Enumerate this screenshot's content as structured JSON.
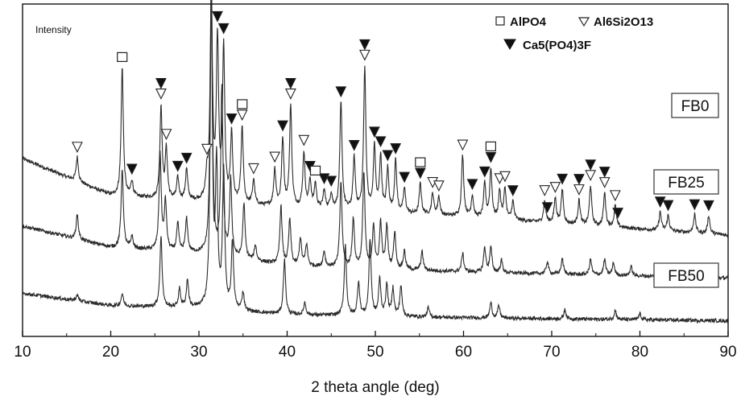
{
  "chart_data": {
    "type": "line",
    "xlabel": "2 theta angle (deg)",
    "ylabel": "Intensity",
    "xlim": [
      10,
      90
    ],
    "xticks": [
      10,
      20,
      30,
      40,
      50,
      60,
      70,
      80,
      90
    ],
    "grid": false,
    "legend_position": "top-right",
    "legend": [
      {
        "marker": "open-square",
        "label": "AlPO4"
      },
      {
        "marker": "open-triangle-down",
        "label": "Al6Si2O13"
      },
      {
        "marker": "filled-triangle-down",
        "label": "Ca5(PO4)3F"
      }
    ],
    "series": [
      {
        "name": "FB0",
        "baseline": [
          [
            10,
            0.56
          ],
          [
            20,
            0.44
          ],
          [
            30,
            0.42
          ],
          [
            40,
            0.4
          ],
          [
            60,
            0.37
          ],
          [
            90,
            0.31
          ]
        ],
        "peaks": [
          [
            16.2,
            0.08
          ],
          [
            21.3,
            0.42
          ],
          [
            22.4,
            0.05
          ],
          [
            25.7,
            0.3
          ],
          [
            26.3,
            0.16
          ],
          [
            27.6,
            0.07
          ],
          [
            28.6,
            0.1
          ],
          [
            30.9,
            0.07
          ],
          [
            31.4,
            0.7
          ],
          [
            32.1,
            0.52
          ],
          [
            32.8,
            0.5
          ],
          [
            33.7,
            0.22
          ],
          [
            34.9,
            0.25
          ],
          [
            36.2,
            0.08
          ],
          [
            38.6,
            0.12
          ],
          [
            39.5,
            0.22
          ],
          [
            40.4,
            0.33
          ],
          [
            41.9,
            0.18
          ],
          [
            42.6,
            0.09
          ],
          [
            43.2,
            0.08
          ],
          [
            44.2,
            0.06
          ],
          [
            45.0,
            0.05
          ],
          [
            46.1,
            0.35
          ],
          [
            47.6,
            0.17
          ],
          [
            48.8,
            0.47
          ],
          [
            49.9,
            0.21
          ],
          [
            50.6,
            0.18
          ],
          [
            51.4,
            0.14
          ],
          [
            52.3,
            0.17
          ],
          [
            53.3,
            0.08
          ],
          [
            55.1,
            0.1
          ],
          [
            56.5,
            0.07
          ],
          [
            57.2,
            0.06
          ],
          [
            59.9,
            0.2
          ],
          [
            61.0,
            0.07
          ],
          [
            62.4,
            0.11
          ],
          [
            63.1,
            0.16
          ],
          [
            64.1,
            0.09
          ],
          [
            64.7,
            0.1
          ],
          [
            65.6,
            0.06
          ],
          [
            69.2,
            0.07
          ],
          [
            70.4,
            0.08
          ],
          [
            71.2,
            0.11
          ],
          [
            73.1,
            0.08
          ],
          [
            74.4,
            0.13
          ],
          [
            76.0,
            0.11
          ],
          [
            77.2,
            0.07
          ],
          [
            82.3,
            0.06
          ],
          [
            83.2,
            0.05
          ],
          [
            86.2,
            0.06
          ],
          [
            87.8,
            0.06
          ]
        ]
      },
      {
        "name": "FB25",
        "baseline": [
          [
            10,
            0.34
          ],
          [
            20,
            0.27
          ],
          [
            30,
            0.25
          ],
          [
            40,
            0.21
          ],
          [
            60,
            0.19
          ],
          [
            90,
            0.17
          ]
        ],
        "peaks": [
          [
            16.2,
            0.08
          ],
          [
            21.3,
            0.26
          ],
          [
            22.4,
            0.04
          ],
          [
            25.6,
            0.31
          ],
          [
            26.2,
            0.16
          ],
          [
            27.6,
            0.09
          ],
          [
            28.6,
            0.11
          ],
          [
            31.4,
            0.88
          ],
          [
            32.6,
            0.54
          ],
          [
            33.6,
            0.25
          ],
          [
            35.1,
            0.18
          ],
          [
            36.4,
            0.05
          ],
          [
            39.3,
            0.19
          ],
          [
            40.3,
            0.15
          ],
          [
            41.5,
            0.09
          ],
          [
            42.2,
            0.07
          ],
          [
            44.2,
            0.05
          ],
          [
            46.1,
            0.28
          ],
          [
            47.5,
            0.16
          ],
          [
            48.7,
            0.31
          ],
          [
            49.8,
            0.14
          ],
          [
            50.6,
            0.15
          ],
          [
            51.3,
            0.14
          ],
          [
            52.2,
            0.12
          ],
          [
            53.3,
            0.06
          ],
          [
            55.3,
            0.06
          ],
          [
            59.9,
            0.06
          ],
          [
            62.4,
            0.08
          ],
          [
            63.1,
            0.08
          ],
          [
            64.3,
            0.04
          ],
          [
            69.5,
            0.04
          ],
          [
            71.2,
            0.05
          ],
          [
            74.4,
            0.05
          ],
          [
            76.0,
            0.05
          ],
          [
            77.0,
            0.04
          ],
          [
            79.0,
            0.03
          ]
        ]
      },
      {
        "name": "FB50",
        "baseline": [
          [
            10,
            0.12
          ],
          [
            20,
            0.08
          ],
          [
            30,
            0.07
          ],
          [
            40,
            0.05
          ],
          [
            60,
            0.04
          ],
          [
            90,
            0.03
          ]
        ],
        "peaks": [
          [
            16.2,
            0.02
          ],
          [
            21.3,
            0.04
          ],
          [
            25.7,
            0.23
          ],
          [
            27.8,
            0.06
          ],
          [
            28.7,
            0.09
          ],
          [
            31.4,
            1.0
          ],
          [
            32.0,
            0.46
          ],
          [
            32.8,
            0.45
          ],
          [
            33.8,
            0.22
          ],
          [
            35.0,
            0.06
          ],
          [
            39.7,
            0.18
          ],
          [
            42.0,
            0.04
          ],
          [
            46.6,
            0.23
          ],
          [
            48.1,
            0.11
          ],
          [
            49.4,
            0.25
          ],
          [
            50.5,
            0.12
          ],
          [
            51.3,
            0.1
          ],
          [
            52.0,
            0.09
          ],
          [
            52.9,
            0.1
          ],
          [
            56.0,
            0.03
          ],
          [
            63.1,
            0.05
          ],
          [
            64.0,
            0.04
          ],
          [
            71.5,
            0.03
          ],
          [
            77.2,
            0.03
          ],
          [
            80.0,
            0.02
          ]
        ]
      }
    ],
    "peak_markers": [
      {
        "type": "open-triangle-down",
        "x": [
          16.2,
          25.7,
          26.3,
          30.9,
          34.9,
          36.2,
          38.6,
          40.4,
          41.9,
          48.8,
          56.5,
          57.2,
          59.9,
          64.1,
          64.7,
          69.2,
          70.4,
          73.1,
          74.4,
          76.0,
          77.2
        ]
      },
      {
        "type": "filled-triangle-down",
        "x": [
          22.4,
          25.7,
          27.6,
          28.6,
          31.4,
          32.1,
          32.8,
          33.7,
          39.5,
          40.4,
          42.6,
          44.2,
          45.0,
          46.1,
          47.6,
          48.8,
          49.9,
          50.6,
          51.4,
          52.3,
          53.3,
          55.1,
          61.0,
          62.4,
          63.1,
          65.6,
          69.5,
          71.2,
          73.1,
          74.4,
          76.0,
          77.5,
          82.3,
          83.2,
          86.2,
          87.8
        ]
      },
      {
        "type": "open-square",
        "x": [
          21.3,
          34.9,
          43.2,
          55.1,
          63.1
        ]
      }
    ]
  }
}
